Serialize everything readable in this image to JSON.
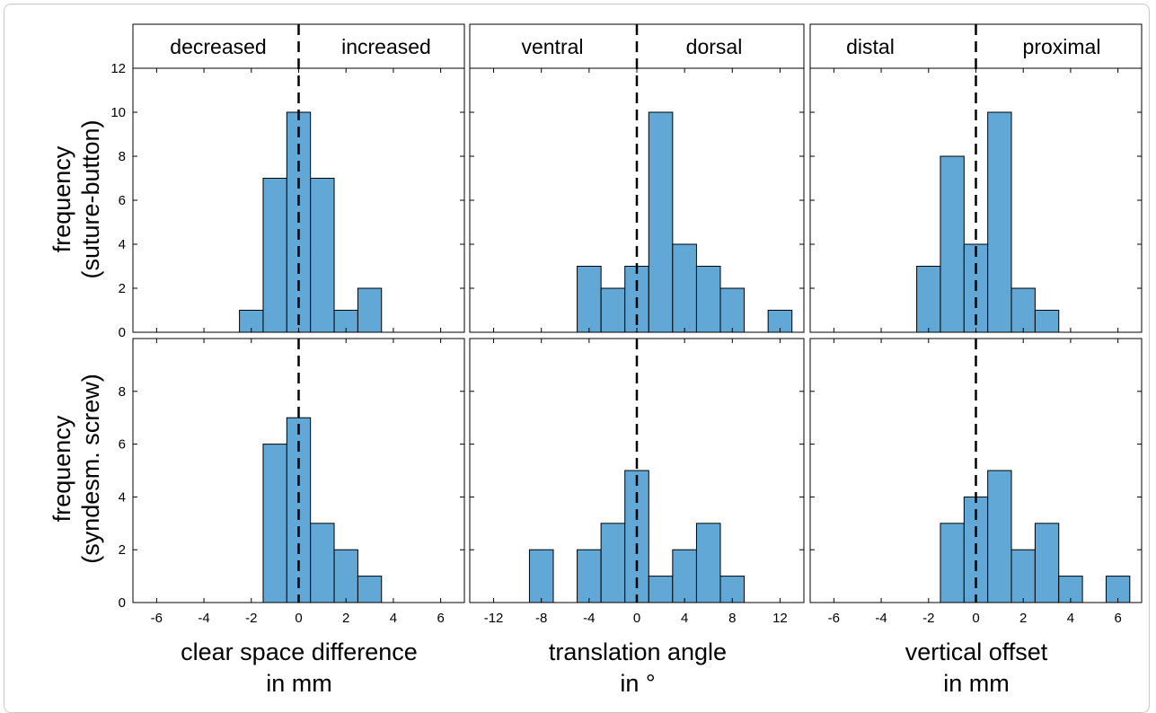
{
  "figure": {
    "row_labels": [
      {
        "line1": "frequency",
        "line2": "(suture-button)"
      },
      {
        "line1": "frequency",
        "line2": "(syndesm. screw)"
      }
    ],
    "bar_color": "#62a8d6"
  },
  "chart_data": [
    {
      "type": "bar",
      "panel": "clear space difference / suture-button",
      "header": {
        "left": "decreased",
        "right": "increased"
      },
      "xlabel": "clear space difference",
      "xlabel2": "in mm",
      "ylabel": "frequency (suture-button)",
      "xlim": [
        -7,
        7
      ],
      "ylim": [
        0,
        12
      ],
      "xticks": [
        -6,
        -4,
        -2,
        0,
        2,
        4,
        6
      ],
      "yticks": [
        0,
        2,
        4,
        6,
        8,
        10,
        12
      ],
      "show_xticklabels": false,
      "bin_width": 1,
      "bin_centers": [
        -2,
        -1,
        0,
        1,
        2,
        3
      ],
      "values": [
        1,
        7,
        10,
        7,
        1,
        2
      ],
      "reference_line": 0
    },
    {
      "type": "bar",
      "panel": "translation angle / suture-button",
      "header": {
        "left": "ventral",
        "right": "dorsal"
      },
      "xlabel": "translation angle",
      "xlabel2": "in °",
      "ylabel": "frequency (suture-button)",
      "xlim": [
        -14,
        14
      ],
      "ylim": [
        0,
        12
      ],
      "xticks": [
        -12,
        -8,
        -4,
        0,
        4,
        8,
        12
      ],
      "yticks": [
        0,
        2,
        4,
        6,
        8,
        10,
        12
      ],
      "show_xticklabels": false,
      "bin_width": 2,
      "bin_centers": [
        -4,
        -2,
        0,
        2,
        4,
        6,
        8,
        12
      ],
      "values": [
        3,
        2,
        3,
        10,
        4,
        3,
        2,
        1
      ],
      "reference_line": 0
    },
    {
      "type": "bar",
      "panel": "vertical offset / suture-button",
      "header": {
        "left": "distal",
        "right": "proximal"
      },
      "xlabel": "vertical offset",
      "xlabel2": "in mm",
      "ylabel": "frequency (suture-button)",
      "xlim": [
        -7,
        7
      ],
      "ylim": [
        0,
        12
      ],
      "xticks": [
        -6,
        -4,
        -2,
        0,
        2,
        4,
        6
      ],
      "yticks": [
        0,
        2,
        4,
        6,
        8,
        10,
        12
      ],
      "show_xticklabels": false,
      "bin_width": 1,
      "bin_centers": [
        -2,
        -1,
        0,
        1,
        2,
        3
      ],
      "values": [
        3,
        8,
        4,
        10,
        2,
        1
      ],
      "reference_line": 0
    },
    {
      "type": "bar",
      "panel": "clear space difference / syndesm. screw",
      "xlabel": "clear space difference",
      "xlabel2": "in mm",
      "ylabel": "frequency (syndesm. screw)",
      "xlim": [
        -7,
        7
      ],
      "ylim": [
        0,
        10
      ],
      "xticks": [
        -6,
        -4,
        -2,
        0,
        2,
        4,
        6
      ],
      "yticks": [
        0,
        2,
        4,
        6,
        8
      ],
      "show_xticklabels": true,
      "bin_width": 1,
      "bin_centers": [
        -1,
        0,
        1,
        2,
        3
      ],
      "values": [
        6,
        7,
        3,
        2,
        1
      ],
      "reference_line": 0
    },
    {
      "type": "bar",
      "panel": "translation angle / syndesm. screw",
      "xlabel": "translation angle",
      "xlabel2": "in °",
      "ylabel": "frequency (syndesm. screw)",
      "xlim": [
        -14,
        14
      ],
      "ylim": [
        0,
        10
      ],
      "xticks": [
        -12,
        -8,
        -4,
        0,
        4,
        8,
        12
      ],
      "yticks": [
        0,
        2,
        4,
        6,
        8
      ],
      "show_xticklabels": true,
      "bin_width": 2,
      "bin_centers": [
        -8,
        -4,
        -2,
        0,
        2,
        4,
        6,
        8
      ],
      "values": [
        2,
        2,
        3,
        5,
        1,
        2,
        3,
        1
      ],
      "reference_line": 0
    },
    {
      "type": "bar",
      "panel": "vertical offset / syndesm. screw",
      "xlabel": "vertical offset",
      "xlabel2": "in mm",
      "ylabel": "frequency (syndesm. screw)",
      "xlim": [
        -7,
        7
      ],
      "ylim": [
        0,
        10
      ],
      "xticks": [
        -6,
        -4,
        -2,
        0,
        2,
        4,
        6
      ],
      "yticks": [
        0,
        2,
        4,
        6,
        8
      ],
      "show_xticklabels": true,
      "bin_width": 1,
      "bin_centers": [
        -1,
        0,
        1,
        2,
        3,
        4,
        6
      ],
      "values": [
        3,
        4,
        5,
        2,
        3,
        1,
        1
      ],
      "reference_line": 0
    }
  ]
}
